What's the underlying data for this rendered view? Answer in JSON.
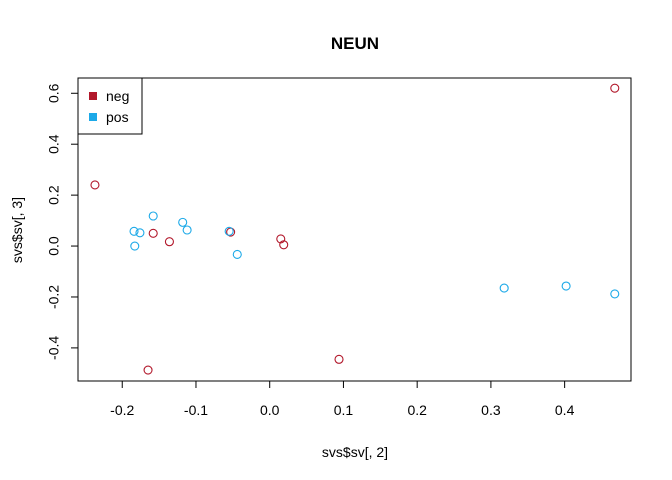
{
  "chart_data": {
    "type": "scatter",
    "title": "NEUN",
    "xlabel": "svs$sv[, 2]",
    "ylabel": "svs$sv[, 3]",
    "xlim": [
      -0.26,
      0.49
    ],
    "ylim": [
      -0.53,
      0.66
    ],
    "x_ticks": [
      -0.2,
      -0.1,
      0.0,
      0.1,
      0.2,
      0.3,
      0.4
    ],
    "x_tick_labels": [
      "-0.2",
      "-0.1",
      "0.0",
      "0.1",
      "0.2",
      "0.3",
      "0.4"
    ],
    "y_ticks": [
      -0.4,
      -0.2,
      0.0,
      0.2,
      0.4,
      0.6
    ],
    "y_tick_labels": [
      "-0.4",
      "-0.2",
      "0.0",
      "0.2",
      "0.4",
      "0.6"
    ],
    "legend": {
      "position": "top-left",
      "entries": [
        {
          "label": "neg",
          "color": "#B2182B"
        },
        {
          "label": "pos",
          "color": "#1CA9E8"
        }
      ]
    },
    "series": [
      {
        "name": "neg",
        "color": "#B2182B",
        "points": [
          [
            -0.237,
            0.24
          ],
          [
            -0.158,
            0.05
          ],
          [
            -0.136,
            0.017
          ],
          [
            -0.053,
            0.055
          ],
          [
            0.015,
            0.028
          ],
          [
            0.019,
            0.005
          ],
          [
            0.094,
            -0.445
          ],
          [
            -0.165,
            -0.487
          ],
          [
            0.468,
            0.62
          ]
        ]
      },
      {
        "name": "pos",
        "color": "#1CA9E8",
        "points": [
          [
            -0.184,
            0.058
          ],
          [
            -0.176,
            0.052
          ],
          [
            -0.183,
            0.0
          ],
          [
            -0.158,
            0.118
          ],
          [
            -0.118,
            0.093
          ],
          [
            -0.112,
            0.063
          ],
          [
            -0.055,
            0.058
          ],
          [
            -0.044,
            -0.033
          ],
          [
            0.318,
            -0.165
          ],
          [
            0.402,
            -0.157
          ],
          [
            0.468,
            -0.188
          ]
        ]
      }
    ]
  }
}
